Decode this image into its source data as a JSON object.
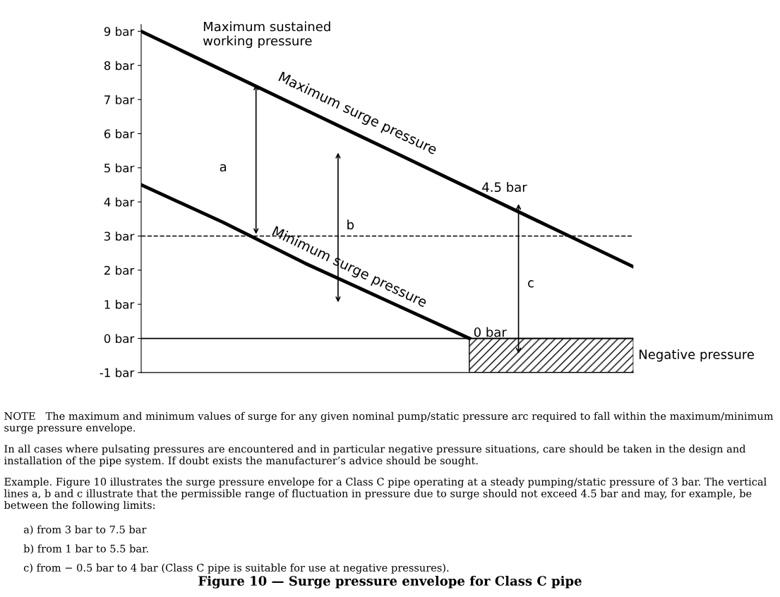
{
  "chart_data": {
    "type": "line",
    "categories": [
      null,
      null,
      null,
      null,
      null,
      null,
      null
    ],
    "series": [
      {
        "name": "Maximum surge pressure",
        "color": "#000000",
        "values": [
          9,
          7.85,
          6.7,
          5.55,
          4.4,
          3.25,
          2.1
        ]
      },
      {
        "name": "Minimum surge pressure",
        "color": "#000000",
        "values": [
          4.5,
          3.4,
          2.2,
          1.1,
          0,
          null,
          null
        ]
      }
    ],
    "ylim": [
      -1,
      9.2
    ],
    "yticks": [
      {
        "value": -1,
        "label": "-1 bar"
      },
      {
        "value": 0,
        "label": "0 bar"
      },
      {
        "value": 1,
        "label": "1 bar"
      },
      {
        "value": 2,
        "label": "2 bar"
      },
      {
        "value": 3,
        "label": "3 bar"
      },
      {
        "value": 4,
        "label": "4 bar"
      },
      {
        "value": 5,
        "label": "5 bar"
      },
      {
        "value": 6,
        "label": "6 bar"
      },
      {
        "value": 7,
        "label": "7 bar"
      },
      {
        "value": 8,
        "label": "8 bar"
      },
      {
        "value": 9,
        "label": "9 bar"
      }
    ],
    "ref_lines": [
      {
        "axis": "y",
        "value": 3,
        "line_style": "dashed",
        "color": "#000000"
      },
      {
        "axis": "y",
        "value": 0,
        "line_style": "solid",
        "color": "#000000"
      }
    ],
    "bands": [
      {
        "axis": "y",
        "from": -1,
        "to": 0,
        "label": "Negative pressure"
      }
    ],
    "tick_labels": "y",
    "grid": false,
    "legend": false,
    "marker": "none",
    "line_style": "solid",
    "annotations": [
      "Maximum sustained\nworking pressure",
      "4.5 bar",
      "0 bar",
      "a",
      "b",
      "c",
      "NOTE   The maximum and minimum values of surge for any given nominal pump/static pressure arc required to fall within the maximum/minimum surge pressure envelope.",
      "In all cases where pulsating pressures are encountered and in particular negative pressure situations, care should be taken in the design and installation of the pipe system. If doubt exists the manufacturer’s advice should be sought.",
      "Example. Figure 10 illustrates the surge pressure envelope for a Class C pipe operating at a steady pumping/static pressure of 3 bar. The vertical lines a, b and c illustrate that the permissible range of fluctuation in pressure due to surge should not exceed 4.5 bar and may, for example, be between the following limits:",
      "a) from 3 bar to 7.5 bar",
      "b) from 1 bar to 5.5 bar.",
      "c) from − 0.5 bar to 4 bar (Class C pipe is suitable for use at negative pressures).",
      "Figure 10 — Surge pressure envelope for Class C pipe"
    ]
  }
}
